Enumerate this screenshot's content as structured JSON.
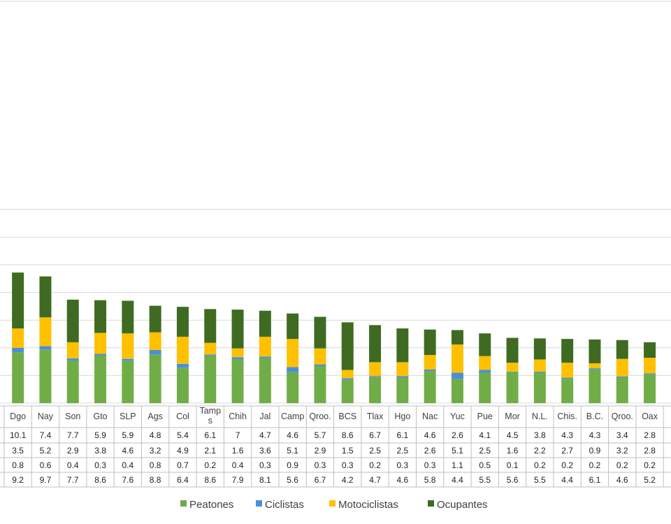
{
  "chart_data": {
    "type": "bar",
    "stacked": true,
    "title": "",
    "xlabel": "",
    "ylabel": "",
    "ylim": [
      0,
      35
    ],
    "grid": true,
    "legend_position": "bottom",
    "categories": [
      "Dgo",
      "Nay",
      "Son",
      "Gto",
      "SLP",
      "Ags",
      "Col",
      "Tamps",
      "Chih",
      "Jal",
      "Camp",
      "Qroo.",
      "BCS",
      "Tlax",
      "Hgo",
      "Nac",
      "Yuc",
      "Pue",
      "Mor",
      "N.L.",
      "Chis.",
      "B.C.",
      "Qroo.",
      "Oax"
    ],
    "series": [
      {
        "name": "Peatones",
        "color": "#70ad47",
        "values": [
          9.2,
          9.7,
          7.7,
          8.6,
          7.6,
          8.8,
          6.4,
          8.6,
          7.9,
          8.1,
          5.6,
          6.7,
          4.2,
          4.7,
          4.6,
          5.8,
          4.4,
          5.5,
          5.6,
          5.5,
          4.4,
          6.1,
          4.6,
          5.2
        ]
      },
      {
        "name": "Ciclistas",
        "color": "#4a8fdc",
        "values": [
          0.8,
          0.6,
          0.4,
          0.3,
          0.4,
          0.8,
          0.7,
          0.2,
          0.4,
          0.3,
          0.9,
          0.3,
          0.3,
          0.2,
          0.3,
          0.3,
          1.1,
          0.5,
          0.1,
          0.2,
          0.2,
          0.2,
          0.2,
          0.2
        ]
      },
      {
        "name": "Motociclistas",
        "color": "#ffc000",
        "values": [
          3.5,
          5.2,
          2.9,
          3.8,
          4.6,
          3.2,
          4.9,
          2.1,
          1.6,
          3.6,
          5.1,
          2.9,
          1.5,
          2.5,
          2.5,
          2.6,
          5.1,
          2.5,
          1.6,
          2.2,
          2.7,
          0.9,
          3.2,
          2.8
        ]
      },
      {
        "name": "Ocupantes",
        "color": "#3e6b21",
        "values": [
          10.1,
          7.4,
          7.7,
          5.9,
          5.9,
          4.8,
          5.4,
          6.1,
          7,
          4.7,
          4.6,
          5.7,
          8.6,
          6.7,
          6.1,
          4.6,
          2.6,
          4.1,
          4.5,
          3.8,
          4.3,
          4.3,
          3.4,
          2.8
        ]
      }
    ],
    "table_row_order": [
      "Ocupantes",
      "Motociclistas",
      "Ciclistas",
      "Peatones"
    ]
  }
}
